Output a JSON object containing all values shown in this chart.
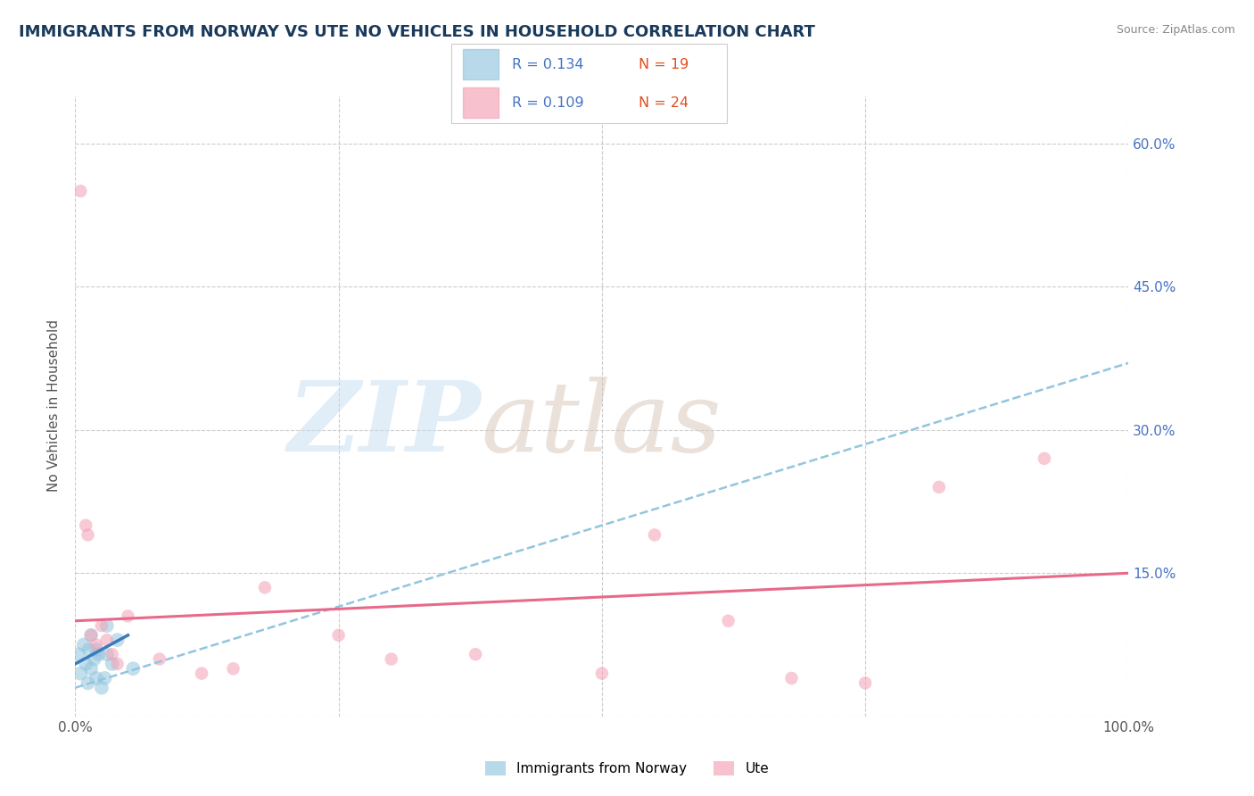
{
  "title": "IMMIGRANTS FROM NORWAY VS UTE NO VEHICLES IN HOUSEHOLD CORRELATION CHART",
  "source": "Source: ZipAtlas.com",
  "ylabel": "No Vehicles in Household",
  "xlim": [
    0,
    100
  ],
  "ylim": [
    0,
    65
  ],
  "yticks": [
    15,
    30,
    45,
    60
  ],
  "ytick_labels": [
    "15.0%",
    "30.0%",
    "45.0%",
    "60.0%"
  ],
  "legend_r1": "R = 0.134",
  "legend_n1": "N = 19",
  "legend_r2": "R = 0.109",
  "legend_n2": "N = 24",
  "color_blue": "#92c5de",
  "color_pink": "#f4a0b5",
  "trendline_blue_color": "#92c5de",
  "trendline_pink_color": "#e8698a",
  "solid_blue_color": "#3a7bbf",
  "background_color": "#ffffff",
  "grid_color": "#cccccc",
  "title_color": "#1a3a5c",
  "axis_label_color": "#555555",
  "right_axis_label_color": "#4472c4",
  "norway_points_x": [
    0.3,
    0.5,
    0.8,
    1.0,
    1.2,
    1.3,
    1.5,
    1.5,
    1.8,
    2.0,
    2.0,
    2.2,
    2.5,
    2.8,
    3.0,
    3.0,
    3.5,
    4.0,
    5.5
  ],
  "norway_points_y": [
    6.5,
    4.5,
    7.5,
    5.5,
    3.5,
    7.0,
    8.5,
    5.0,
    6.0,
    4.0,
    7.0,
    6.5,
    3.0,
    4.0,
    6.5,
    9.5,
    5.5,
    8.0,
    5.0
  ],
  "ute_points_x": [
    0.5,
    1.0,
    1.2,
    1.5,
    2.0,
    2.5,
    3.0,
    3.5,
    4.0,
    5.0,
    8.0,
    12.0,
    15.0,
    18.0,
    25.0,
    30.0,
    38.0,
    50.0,
    55.0,
    62.0,
    68.0,
    75.0,
    82.0,
    92.0
  ],
  "ute_points_y": [
    55.0,
    20.0,
    19.0,
    8.5,
    7.5,
    9.5,
    8.0,
    6.5,
    5.5,
    10.5,
    6.0,
    4.5,
    5.0,
    13.5,
    8.5,
    6.0,
    6.5,
    4.5,
    19.0,
    10.0,
    4.0,
    3.5,
    24.0,
    27.0
  ],
  "norway_trendline_x": [
    0,
    100
  ],
  "norway_trendline_y": [
    3.0,
    37.0
  ],
  "ute_trendline_x": [
    0,
    100
  ],
  "ute_trendline_y": [
    10.0,
    15.0
  ],
  "norway_short_line_x": [
    0.0,
    5.0
  ],
  "norway_short_line_y": [
    5.5,
    8.5
  ],
  "marker_size_blue": 130,
  "marker_size_pink": 110
}
